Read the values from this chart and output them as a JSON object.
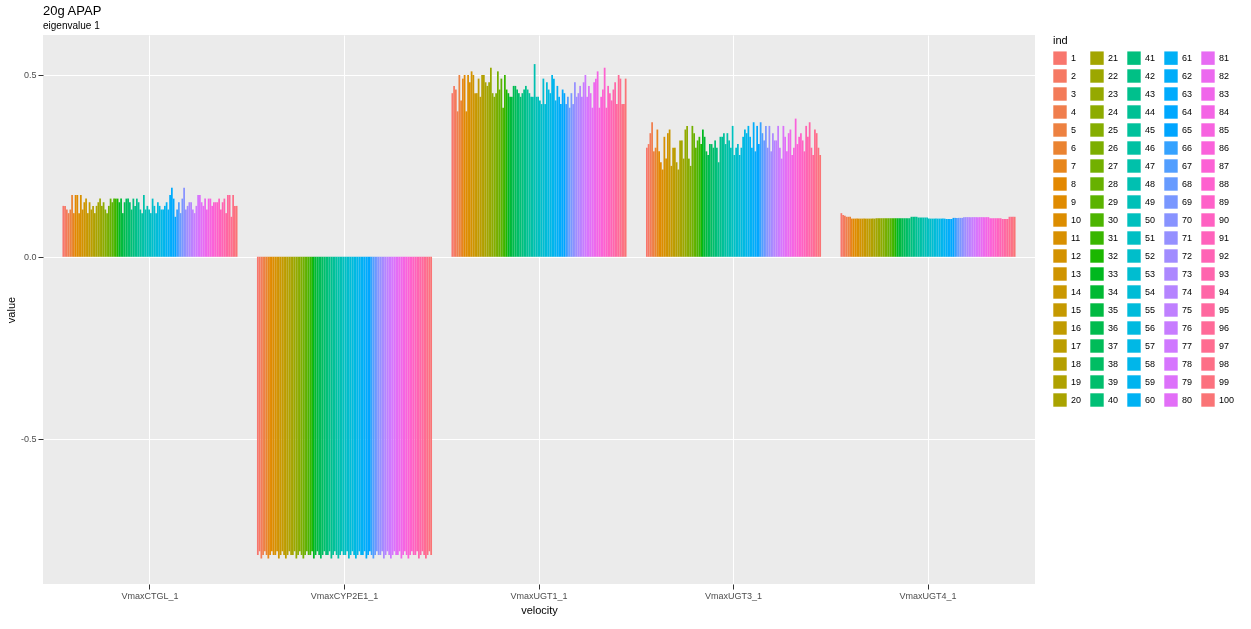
{
  "chart_data": {
    "type": "bar",
    "title": "20g APAP",
    "subtitle": "eigenvalue 1",
    "xlabel": "velocity",
    "ylabel": "value",
    "legend_title": "ind",
    "legend": "right",
    "grid": true,
    "categories": [
      "VmaxCTGL_1",
      "VmaxCYP2E1_1",
      "VmaxUGT1_1",
      "VmaxUGT3_1",
      "VmaxUGT4_1"
    ],
    "ylim": [
      -0.9,
      0.61
    ],
    "yticks": [
      -0.5,
      {
        "value": 0,
        "label": "0.0"
      },
      0.5
    ],
    "series": [
      {
        "name": "1",
        "color": "#f8766d",
        "values": [
          0.14,
          -0.82,
          0.45,
          0.3,
          0.12
        ]
      },
      {
        "name": "2",
        "color": "#f67963",
        "values": [
          0.14,
          -0.81,
          0.47,
          0.31,
          0.115
        ]
      },
      {
        "name": "3",
        "color": "#f37b59",
        "values": [
          0.13,
          -0.83,
          0.46,
          0.34,
          0.113
        ]
      },
      {
        "name": "4",
        "color": "#f07e4d",
        "values": [
          0.12,
          -0.82,
          0.4,
          0.37,
          0.11
        ]
      },
      {
        "name": "5",
        "color": "#ed8141",
        "values": [
          0.13,
          -0.81,
          0.5,
          0.29,
          0.11
        ]
      },
      {
        "name": "6",
        "color": "#ea8331",
        "values": [
          0.17,
          -0.82,
          0.43,
          0.3,
          0.11
        ]
      },
      {
        "name": "7",
        "color": "#e7861b",
        "values": [
          0.12,
          -0.83,
          0.49,
          0.35,
          0.105
        ]
      },
      {
        "name": "8",
        "color": "#e38800",
        "values": [
          0.17,
          -0.82,
          0.5,
          0.29,
          0.105
        ]
      },
      {
        "name": "9",
        "color": "#e08b00",
        "values": [
          0.17,
          -0.81,
          0.4,
          0.26,
          0.105
        ]
      },
      {
        "name": "10",
        "color": "#dc8d00",
        "values": [
          0.12,
          -0.82,
          0.5,
          0.24,
          0.105
        ]
      },
      {
        "name": "11",
        "color": "#d89000",
        "values": [
          0.17,
          -0.82,
          0.48,
          0.33,
          0.105
        ]
      },
      {
        "name": "12",
        "color": "#d39200",
        "values": [
          0.13,
          -0.81,
          0.51,
          0.27,
          0.105
        ]
      },
      {
        "name": "13",
        "color": "#cf9400",
        "values": [
          0.15,
          -0.83,
          0.5,
          0.34,
          0.105
        ]
      },
      {
        "name": "14",
        "color": "#ca9700",
        "values": [
          0.16,
          -0.82,
          0.45,
          0.35,
          0.105
        ]
      },
      {
        "name": "15",
        "color": "#c59900",
        "values": [
          0.12,
          -0.81,
          0.45,
          0.25,
          0.105
        ]
      },
      {
        "name": "16",
        "color": "#c09b00",
        "values": [
          0.15,
          -0.82,
          0.49,
          0.3,
          0.105
        ]
      },
      {
        "name": "17",
        "color": "#bb9d00",
        "values": [
          0.13,
          -0.83,
          0.44,
          0.3,
          0.105
        ]
      },
      {
        "name": "18",
        "color": "#b59f00",
        "values": [
          0.14,
          -0.82,
          0.5,
          0.26,
          0.105
        ]
      },
      {
        "name": "19",
        "color": "#afa100",
        "values": [
          0.12,
          -0.81,
          0.5,
          0.24,
          0.105
        ]
      },
      {
        "name": "20",
        "color": "#a9a300",
        "values": [
          0.14,
          -0.82,
          0.48,
          0.32,
          0.105
        ]
      },
      {
        "name": "21",
        "color": "#a3a500",
        "values": [
          0.15,
          -0.82,
          0.47,
          0.32,
          0.106
        ]
      },
      {
        "name": "22",
        "color": "#9ca700",
        "values": [
          0.16,
          -0.81,
          0.48,
          0.27,
          0.106
        ]
      },
      {
        "name": "23",
        "color": "#95a900",
        "values": [
          0.14,
          -0.83,
          0.52,
          0.35,
          0.106
        ]
      },
      {
        "name": "24",
        "color": "#8dab00",
        "values": [
          0.15,
          -0.82,
          0.45,
          0.36,
          0.106
        ]
      },
      {
        "name": "25",
        "color": "#85ad00",
        "values": [
          0.13,
          -0.81,
          0.44,
          0.27,
          0.106
        ]
      },
      {
        "name": "26",
        "color": "#7cae00",
        "values": [
          0.12,
          -0.82,
          0.45,
          0.25,
          0.106
        ]
      },
      {
        "name": "27",
        "color": "#72b000",
        "values": [
          0.14,
          -0.83,
          0.51,
          0.36,
          0.106
        ]
      },
      {
        "name": "28",
        "color": "#67b100",
        "values": [
          0.16,
          -0.82,
          0.46,
          0.34,
          0.106
        ]
      },
      {
        "name": "29",
        "color": "#5bb300",
        "values": [
          0.15,
          -0.81,
          0.49,
          0.3,
          0.106
        ]
      },
      {
        "name": "30",
        "color": "#4cb400",
        "values": [
          0.16,
          -0.82,
          0.41,
          0.32,
          0.106
        ]
      },
      {
        "name": "31",
        "color": "#39b600",
        "values": [
          0.16,
          -0.82,
          0.5,
          0.33,
          0.106
        ]
      },
      {
        "name": "32",
        "color": "#1bb700",
        "values": [
          0.16,
          -0.81,
          0.46,
          0.31,
          0.106
        ]
      },
      {
        "name": "33",
        "color": "#00b81f",
        "values": [
          0.15,
          -0.83,
          0.45,
          0.35,
          0.106
        ]
      },
      {
        "name": "34",
        "color": "#00b933",
        "values": [
          0.16,
          -0.82,
          0.44,
          0.33,
          0.106
        ]
      },
      {
        "name": "35",
        "color": "#00ba42",
        "values": [
          0.12,
          -0.81,
          0.44,
          0.29,
          0.106
        ]
      },
      {
        "name": "36",
        "color": "#00bb4e",
        "values": [
          0.15,
          -0.82,
          0.47,
          0.28,
          0.106
        ]
      },
      {
        "name": "37",
        "color": "#00bc59",
        "values": [
          0.16,
          -0.83,
          0.47,
          0.31,
          0.106
        ]
      },
      {
        "name": "38",
        "color": "#00bd63",
        "values": [
          0.16,
          -0.82,
          0.46,
          0.31,
          0.106
        ]
      },
      {
        "name": "39",
        "color": "#00be6c",
        "values": [
          0.15,
          -0.81,
          0.45,
          0.3,
          0.106
        ]
      },
      {
        "name": "40",
        "color": "#00bf75",
        "values": [
          0.13,
          -0.82,
          0.44,
          0.32,
          0.106
        ]
      },
      {
        "name": "41",
        "color": "#00bf7d",
        "values": [
          0.16,
          -0.82,
          0.45,
          0.3,
          0.11
        ]
      },
      {
        "name": "42",
        "color": "#00c085",
        "values": [
          0.14,
          -0.81,
          0.46,
          0.26,
          0.11
        ]
      },
      {
        "name": "43",
        "color": "#00c08d",
        "values": [
          0.16,
          -0.83,
          0.47,
          0.33,
          0.11
        ]
      },
      {
        "name": "44",
        "color": "#00c095",
        "values": [
          0.15,
          -0.82,
          0.46,
          0.33,
          0.11
        ]
      },
      {
        "name": "45",
        "color": "#00c19c",
        "values": [
          0.13,
          -0.81,
          0.45,
          0.34,
          0.108
        ]
      },
      {
        "name": "46",
        "color": "#00c1a3",
        "values": [
          0.12,
          -0.82,
          0.44,
          0.31,
          0.108
        ]
      },
      {
        "name": "47",
        "color": "#00c1aa",
        "values": [
          0.17,
          -0.83,
          0.44,
          0.34,
          0.108
        ]
      },
      {
        "name": "48",
        "color": "#00c0b1",
        "values": [
          0.13,
          -0.82,
          0.53,
          0.32,
          0.108
        ]
      },
      {
        "name": "49",
        "color": "#00c0b8",
        "values": [
          0.14,
          -0.81,
          0.44,
          0.3,
          0.108
        ]
      },
      {
        "name": "50",
        "color": "#00c0be",
        "values": [
          0.13,
          -0.82,
          0.44,
          0.36,
          0.108
        ]
      },
      {
        "name": "51",
        "color": "#00bfc4",
        "values": [
          0.12,
          -0.82,
          0.43,
          0.28,
          0.105
        ]
      },
      {
        "name": "52",
        "color": "#00beca",
        "values": [
          0.16,
          -0.81,
          0.42,
          0.3,
          0.105
        ]
      },
      {
        "name": "53",
        "color": "#00bdd0",
        "values": [
          0.14,
          -0.83,
          0.49,
          0.31,
          0.105
        ]
      },
      {
        "name": "54",
        "color": "#00bcd6",
        "values": [
          0.12,
          -0.82,
          0.42,
          0.28,
          0.105
        ]
      },
      {
        "name": "55",
        "color": "#00bbdb",
        "values": [
          0.15,
          -0.81,
          0.48,
          0.3,
          0.105
        ]
      },
      {
        "name": "56",
        "color": "#00bae0",
        "values": [
          0.14,
          -0.82,
          0.46,
          0.33,
          0.105
        ]
      },
      {
        "name": "57",
        "color": "#00b8e5",
        "values": [
          0.13,
          -0.83,
          0.45,
          0.35,
          0.105
        ]
      },
      {
        "name": "58",
        "color": "#00b6ea",
        "values": [
          0.13,
          -0.82,
          0.5,
          0.34,
          0.105
        ]
      },
      {
        "name": "59",
        "color": "#00b4ef",
        "values": [
          0.14,
          -0.81,
          0.49,
          0.36,
          0.105
        ]
      },
      {
        "name": "60",
        "color": "#00b2f3",
        "values": [
          0.15,
          -0.82,
          0.43,
          0.33,
          0.105
        ]
      },
      {
        "name": "61",
        "color": "#00b0f6",
        "values": [
          0.13,
          -0.82,
          0.47,
          0.3,
          0.104
        ]
      },
      {
        "name": "62",
        "color": "#00adfa",
        "values": [
          0.17,
          -0.81,
          0.44,
          0.37,
          0.104
        ]
      },
      {
        "name": "63",
        "color": "#00abfd",
        "values": [
          0.19,
          -0.83,
          0.42,
          0.29,
          0.104
        ]
      },
      {
        "name": "64",
        "color": "#00a8ff",
        "values": [
          0.16,
          -0.82,
          0.46,
          0.36,
          0.104
        ]
      },
      {
        "name": "65",
        "color": "#00a5ff",
        "values": [
          0.11,
          -0.81,
          0.45,
          0.31,
          0.107
        ]
      },
      {
        "name": "66",
        "color": "#35a2ff",
        "values": [
          0.13,
          -0.82,
          0.42,
          0.37,
          0.107
        ]
      },
      {
        "name": "67",
        "color": "#529eff",
        "values": [
          0.15,
          -0.83,
          0.44,
          0.34,
          0.107
        ]
      },
      {
        "name": "68",
        "color": "#679bff",
        "values": [
          0.12,
          -0.82,
          0.41,
          0.32,
          0.107
        ]
      },
      {
        "name": "69",
        "color": "#7997ff",
        "values": [
          0.16,
          -0.81,
          0.45,
          0.36,
          0.107
        ]
      },
      {
        "name": "70",
        "color": "#8893ff",
        "values": [
          0.19,
          -0.82,
          0.42,
          0.3,
          0.107
        ]
      },
      {
        "name": "71",
        "color": "#9590ff",
        "values": [
          0.13,
          -0.82,
          0.48,
          0.36,
          0.109
        ]
      },
      {
        "name": "72",
        "color": "#a18cff",
        "values": [
          0.14,
          -0.81,
          0.44,
          0.29,
          0.109
        ]
      },
      {
        "name": "73",
        "color": "#ac88ff",
        "values": [
          0.15,
          -0.83,
          0.45,
          0.34,
          0.109
        ]
      },
      {
        "name": "74",
        "color": "#b584ff",
        "values": [
          0.15,
          -0.82,
          0.47,
          0.32,
          0.109
        ]
      },
      {
        "name": "75",
        "color": "#bf80ff",
        "values": [
          0.13,
          -0.81,
          0.44,
          0.32,
          0.109
        ]
      },
      {
        "name": "76",
        "color": "#c77cff",
        "values": [
          0.12,
          -0.82,
          0.48,
          0.36,
          0.109
        ]
      },
      {
        "name": "77",
        "color": "#cf78ff",
        "values": [
          0.14,
          -0.83,
          0.5,
          0.3,
          0.109
        ]
      },
      {
        "name": "78",
        "color": "#d675fe",
        "values": [
          0.17,
          -0.82,
          0.44,
          0.27,
          0.109
        ]
      },
      {
        "name": "79",
        "color": "#dc71fa",
        "values": [
          0.17,
          -0.81,
          0.47,
          0.36,
          0.109
        ]
      },
      {
        "name": "80",
        "color": "#e26ef7",
        "values": [
          0.15,
          -0.82,
          0.45,
          0.33,
          0.109
        ]
      },
      {
        "name": "81",
        "color": "#e76bf3",
        "values": [
          0.14,
          -0.82,
          0.41,
          0.29,
          0.109
        ]
      },
      {
        "name": "82",
        "color": "#ec69ef",
        "values": [
          0.16,
          -0.81,
          0.48,
          0.34,
          0.109
        ]
      },
      {
        "name": "83",
        "color": "#f066ea",
        "values": [
          0.13,
          -0.83,
          0.49,
          0.35,
          0.109
        ]
      },
      {
        "name": "84",
        "color": "#f464e5",
        "values": [
          0.16,
          -0.82,
          0.51,
          0.28,
          0.109
        ]
      },
      {
        "name": "85",
        "color": "#f763e0",
        "values": [
          0.16,
          -0.81,
          0.41,
          0.3,
          0.109
        ]
      },
      {
        "name": "86",
        "color": "#fa62db",
        "values": [
          0.14,
          -0.82,
          0.44,
          0.38,
          0.106
        ]
      },
      {
        "name": "87",
        "color": "#fc61d5",
        "values": [
          0.15,
          -0.83,
          0.46,
          0.31,
          0.106
        ]
      },
      {
        "name": "88",
        "color": "#fe61cf",
        "values": [
          0.15,
          -0.82,
          0.52,
          0.33,
          0.106
        ]
      },
      {
        "name": "89",
        "color": "#ff61c9",
        "values": [
          0.15,
          -0.81,
          0.41,
          0.34,
          0.106
        ]
      },
      {
        "name": "90",
        "color": "#ff61c2",
        "values": [
          0.16,
          -0.82,
          0.47,
          0.32,
          0.106
        ]
      },
      {
        "name": "91",
        "color": "#ff62bc",
        "values": [
          0.13,
          -0.82,
          0.45,
          0.29,
          0.106
        ]
      },
      {
        "name": "92",
        "color": "#ff63b5",
        "values": [
          0.15,
          -0.81,
          0.43,
          0.36,
          0.106
        ]
      },
      {
        "name": "93",
        "color": "#ff65ae",
        "values": [
          0.16,
          -0.83,
          0.46,
          0.33,
          0.104
        ]
      },
      {
        "name": "94",
        "color": "#ff66a7",
        "values": [
          0.12,
          -0.82,
          0.48,
          0.37,
          0.104
        ]
      },
      {
        "name": "95",
        "color": "#ff689f",
        "values": [
          0.17,
          -0.81,
          0.42,
          0.3,
          0.104
        ]
      },
      {
        "name": "96",
        "color": "#ff6a98",
        "values": [
          0.17,
          -0.82,
          0.5,
          0.28,
          0.104
        ]
      },
      {
        "name": "97",
        "color": "#ff6c90",
        "values": [
          0.11,
          -0.83,
          0.49,
          0.35,
          0.11
        ]
      },
      {
        "name": "98",
        "color": "#fd6f87",
        "values": [
          0.17,
          -0.82,
          0.42,
          0.34,
          0.11
        ]
      },
      {
        "name": "99",
        "color": "#fc717f",
        "values": [
          0.14,
          -0.81,
          0.42,
          0.3,
          0.11
        ]
      },
      {
        "name": "100",
        "color": "#fa7476",
        "values": [
          0.14,
          -0.82,
          0.49,
          0.28,
          0.11
        ]
      }
    ]
  }
}
